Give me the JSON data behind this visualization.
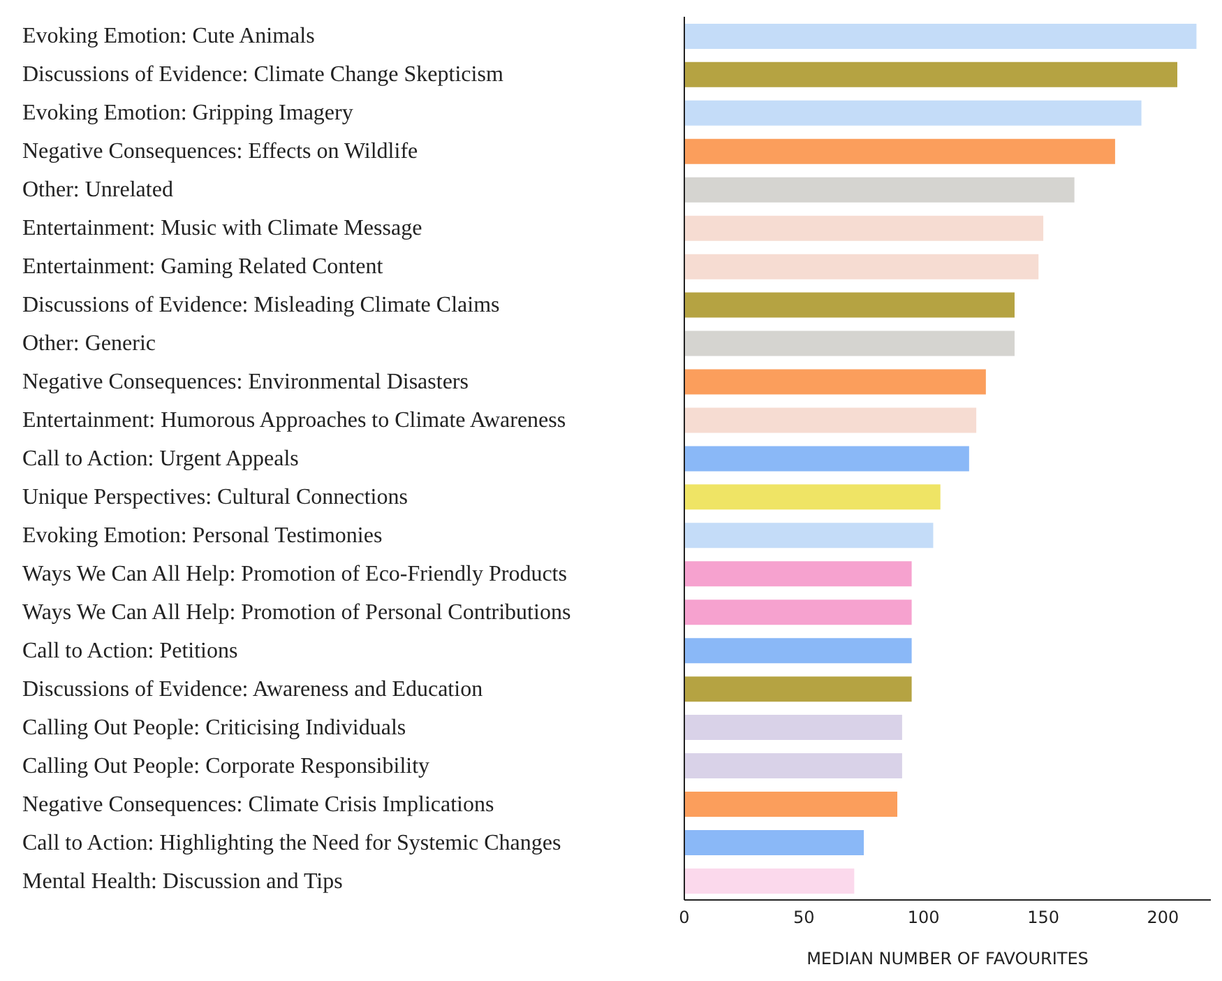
{
  "chart_data": {
    "type": "bar",
    "orientation": "horizontal",
    "xlabel": "MEDIAN NUMBER OF FAVOURITES",
    "categories": [
      "Evoking Emotion: Cute Animals",
      "Discussions of Evidence: Climate Change Skepticism",
      "Evoking Emotion: Gripping Imagery",
      "Negative Consequences: Effects on Wildlife",
      "Other: Unrelated",
      "Entertainment: Music with Climate Message",
      "Entertainment: Gaming Related Content",
      "Discussions of Evidence: Misleading Climate Claims",
      "Other: Generic",
      "Negative Consequences: Environmental Disasters",
      "Entertainment: Humorous Approaches to Climate Awareness",
      "Call to Action: Urgent Appeals",
      "Unique Perspectives: Cultural Connections",
      "Evoking Emotion: Personal Testimonies",
      "Ways We Can All Help: Promotion of Eco-Friendly Products",
      "Ways We Can All Help: Promotion of Personal Contributions",
      "Call to Action: Petitions",
      "Discussions of Evidence: Awareness and Education",
      "Calling Out People: Criticising Individuals",
      "Calling Out People: Corporate Responsibility",
      "Negative Consequences: Climate Crisis Implications",
      "Call to Action: Highlighting the Need for Systemic Changes",
      "Mental Health: Discussion and Tips"
    ],
    "values": [
      214,
      206,
      191,
      180,
      163,
      150,
      148,
      138,
      138,
      126,
      122,
      119,
      107,
      104,
      95,
      95,
      95,
      95,
      91,
      91,
      89,
      75,
      71
    ],
    "colors": [
      "#c4dcf8",
      "#b5a342",
      "#c4dcf8",
      "#fb9e5c",
      "#d5d4d0",
      "#f6dcd2",
      "#f6dcd2",
      "#b5a342",
      "#d5d4d0",
      "#fb9e5c",
      "#f6dcd2",
      "#8ab8f7",
      "#efe465",
      "#c4dcf8",
      "#f6a2cf",
      "#f6a2cf",
      "#8ab8f7",
      "#b5a342",
      "#d9d2e8",
      "#d9d2e8",
      "#fb9e5c",
      "#8ab8f7",
      "#fbd9ec"
    ],
    "xlim": [
      0,
      220
    ],
    "xticks": [
      0,
      50,
      100,
      150,
      200
    ],
    "grid": false
  }
}
